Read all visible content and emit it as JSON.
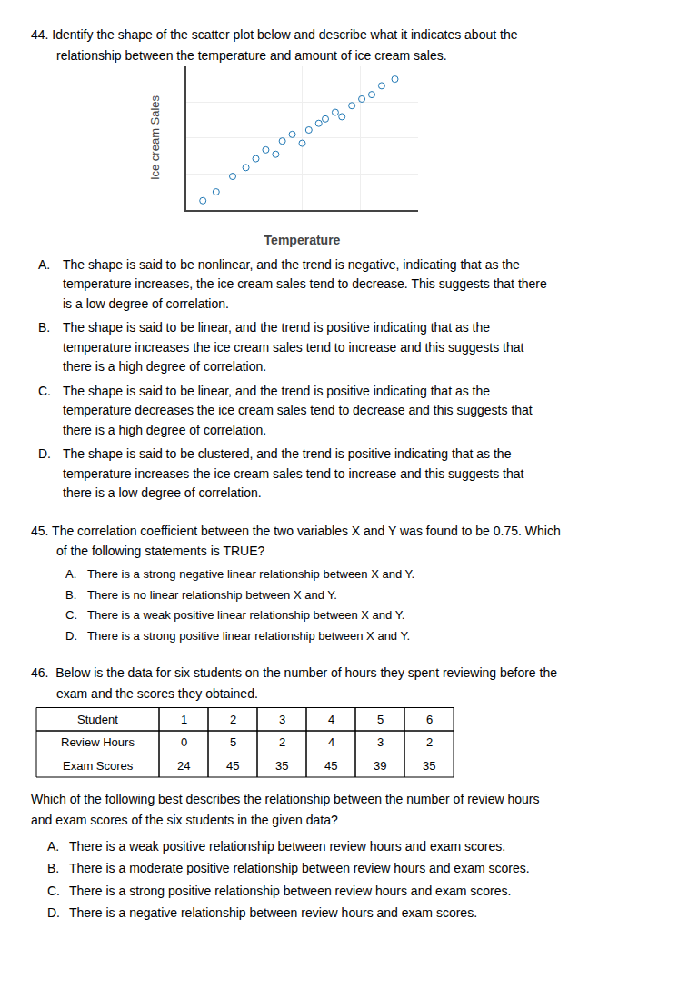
{
  "chart_data": {
    "type": "scatter",
    "x": [
      0.5,
      0.9,
      1.4,
      1.8,
      2.1,
      2.4,
      2.7,
      2.9,
      3.2,
      3.5,
      3.7,
      4.0,
      4.2,
      4.5,
      4.7,
      5.0,
      5.3,
      5.6,
      5.9,
      6.3
    ],
    "values": [
      0.4,
      0.8,
      1.5,
      1.9,
      2.3,
      2.7,
      2.5,
      3.1,
      3.4,
      3.0,
      3.6,
      3.9,
      4.1,
      4.4,
      4.2,
      4.7,
      5.0,
      5.2,
      5.6,
      5.9
    ],
    "xlabel": "Temperature",
    "ylabel": "Ice cream Sales",
    "xlim": [
      0,
      7
    ],
    "ylim": [
      0,
      6.5
    ],
    "xticks": [
      1.75,
      3.5,
      5.25
    ],
    "yticks": [
      1.625,
      3.25,
      4.875
    ],
    "tick_labels": false,
    "grid": true,
    "marker": "circle-open",
    "annotations": [
      "44. Identify the shape of the scatter plot below and describe what it indicates about the",
      "relationship between the temperature and amount of ice cream sales.",
      "A.",
      "The shape is said to be nonlinear, and the trend is negative, indicating that as the",
      "temperature increases, the ice cream sales tend to decrease. This suggests that there",
      "is a low degree of correlation.",
      "B.",
      "The shape is said to be linear, and the trend is positive indicating that as the",
      "temperature increases the ice cream sales tend to increase and this suggests that",
      "there is a high degree of correlation.",
      "C.",
      "The shape is said to be linear, and the trend is positive indicating that as the",
      "temperature decreases the ice cream sales tend to decrease and this suggests that",
      "there is a high degree of correlation.",
      "D.",
      "The shape is said to be clustered, and the trend is positive indicating that as the",
      "temperature increases the ice cream sales tend to increase and this suggests that",
      "there is a low degree of correlation.",
      "45. The correlation coefficient between the two variables X and Y was found to be 0.75. Which",
      "of the following statements is TRUE?",
      "A.",
      "There is a strong negative linear relationship between X and Y.",
      "B.",
      "There is no linear relationship between X and Y.",
      "C.",
      "There is a weak positive linear relationship between X and Y.",
      "D.",
      "There is a strong positive linear relationship between X and Y.",
      "46.  Below is the data for six students on the number of hours they spent reviewing before the",
      "exam and the scores they obtained.",
      "Which of the following best describes the relationship between the number of review hours",
      "and exam scores of the six students in the given data?",
      "A.",
      "There is a weak positive relationship between review hours and exam scores.",
      "B.",
      "There is a moderate positive relationship between review hours and exam scores.",
      "C.",
      "There is a strong positive relationship between review hours and exam scores.",
      "D.",
      "There is a negative relationship between review hours and exam scores."
    ],
    "table": [
      [
        "Student",
        "1",
        "2",
        "3",
        "4",
        "5",
        "6"
      ],
      [
        "Review Hours",
        "0",
        "5",
        "2",
        "4",
        "3",
        "2"
      ],
      [
        "Exam Scores",
        "24",
        "45",
        "35",
        "45",
        "39",
        "35"
      ]
    ]
  }
}
